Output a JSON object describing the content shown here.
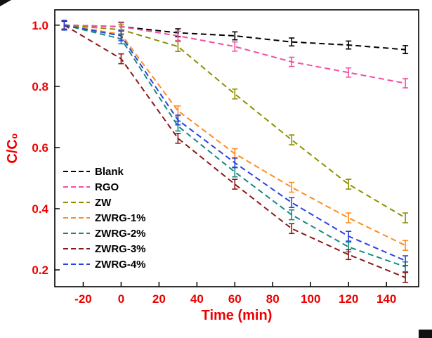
{
  "figure": {
    "background": "#ffffff"
  },
  "colors": {
    "axis_text": "#ee0000",
    "frame": "#000000",
    "legend_text": "#000000"
  },
  "chart_data": {
    "type": "line",
    "title": "",
    "xlabel": "Time (min)",
    "ylabel": "C/C₀",
    "grid": false,
    "legend_position": "left-middle-inside",
    "xlim": [
      -35,
      157
    ],
    "ylim": [
      0.145,
      1.05
    ],
    "xticks": [
      -20,
      0,
      20,
      40,
      60,
      80,
      100,
      120,
      140
    ],
    "yticks": [
      "0.2",
      "0.4",
      "0.6",
      "0.8",
      "1.0"
    ],
    "x": [
      -30,
      0,
      30,
      60,
      90,
      120,
      150
    ],
    "series": [
      {
        "name": "Blank",
        "color": "#000000",
        "values": [
          1.0,
          0.995,
          0.975,
          0.965,
          0.945,
          0.935,
          0.92
        ],
        "yerr": 0.013,
        "dash": "8 5"
      },
      {
        "name": "RGO",
        "color": "#f24fa0",
        "values": [
          1.0,
          0.995,
          0.965,
          0.93,
          0.88,
          0.845,
          0.81
        ],
        "yerr": 0.015,
        "dash": "8 5"
      },
      {
        "name": "ZW",
        "color": "#8f8f00",
        "values": [
          1.0,
          0.985,
          0.93,
          0.775,
          0.625,
          0.48,
          0.37
        ],
        "yerr": 0.016,
        "dash": "8 5"
      },
      {
        "name": "ZWRG-1%",
        "color": "#ff8c1e",
        "values": [
          1.0,
          0.97,
          0.72,
          0.58,
          0.47,
          0.37,
          0.28
        ],
        "yerr": 0.016,
        "dash": "8 5"
      },
      {
        "name": "ZWRG-2%",
        "color": "#15897f",
        "values": [
          1.0,
          0.955,
          0.67,
          0.52,
          0.38,
          0.275,
          0.21
        ],
        "yerr": 0.016,
        "dash": "8 5"
      },
      {
        "name": "ZWRG-3%",
        "color": "#8c1717",
        "values": [
          1.0,
          0.89,
          0.63,
          0.48,
          0.335,
          0.25,
          0.175
        ],
        "yerr": 0.016,
        "dash": "8 5"
      },
      {
        "name": "ZWRG-4%",
        "color": "#2743e0",
        "values": [
          1.0,
          0.965,
          0.69,
          0.55,
          0.42,
          0.31,
          0.23
        ],
        "yerr": 0.016,
        "dash": "8 5"
      }
    ]
  }
}
